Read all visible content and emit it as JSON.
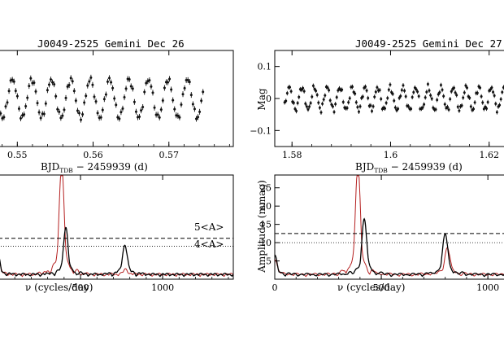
{
  "chart_data": [
    {
      "type": "scatter",
      "title": "J0049-2525 Gemini Dec 26",
      "xlabel_main": "BJD",
      "xlabel_sub": "TDB",
      "xlabel_tail": " − 2459939 (d)",
      "xlim": [
        0.5475,
        0.5785
      ],
      "ylim": [
        0.15,
        -0.15
      ],
      "xticks": [
        0.55,
        0.56,
        0.57
      ],
      "xtick_labels": [
        "0.55",
        "0.56",
        "0.57"
      ],
      "y_reversed": true,
      "period_cycles_per_day": 390,
      "semi_amplitude_mag": 0.06,
      "x_start": 0.5478,
      "x_end": 0.5745,
      "n_points": 122,
      "error_bar_mag": 0.018
    },
    {
      "type": "scatter",
      "title": "J0049-2525 Gemini Dec 27",
      "xlabel_main": "BJD",
      "xlabel_sub": "TDB",
      "xlabel_tail": " − 2459939 (d)",
      "ylabel": "Mag",
      "xlim": [
        1.5765,
        1.6245
      ],
      "ylim": [
        0.15,
        -0.15
      ],
      "xticks": [
        1.58,
        1.6,
        1.62
      ],
      "xtick_labels": [
        "1.58",
        "1.6",
        "1.62"
      ],
      "yticks": [
        -0.1,
        0,
        0.1
      ],
      "ytick_labels": [
        "−0.1",
        "0",
        "0.1"
      ],
      "y_reversed": true,
      "period_cycles_per_day": 390,
      "semi_amplitude_mag": 0.035,
      "x_start": 1.5785,
      "x_end": 1.6245,
      "n_points": 175,
      "error_bar_mag": 0.014
    },
    {
      "type": "line",
      "xlabel": "ν (cycles/day)",
      "xlim": [
        0,
        1430
      ],
      "ylim": [
        0,
        28.5
      ],
      "xticks": [
        500,
        1000
      ],
      "xtick_labels": [
        "500",
        "1000"
      ],
      "threshold_5A": 11.2,
      "threshold_4A": 9.0,
      "threshold_5A_label": "5<A>",
      "threshold_4A_label": "4<A>",
      "series": [
        {
          "color": "#b52020",
          "peaks": [
            [
              385,
              26.5,
              26
            ],
            [
              775,
              1.2,
              25
            ],
            [
              0,
              4,
              20
            ]
          ]
        },
        {
          "color": "#000000",
          "peaks": [
            [
              410,
              11.5,
              24
            ],
            [
              770,
              7.2,
              26
            ],
            [
              0,
              4.2,
              20
            ]
          ]
        }
      ]
    },
    {
      "type": "line",
      "xlabel": "ν (cycles/day)",
      "ylabel": "Amplitude (mmag)",
      "xlim": [
        0,
        1110
      ],
      "ylim": [
        0,
        28.5
      ],
      "xticks": [
        0,
        500,
        1000
      ],
      "xtick_labels": [
        "0",
        "500",
        "1000"
      ],
      "yticks": [
        5,
        10,
        15,
        20,
        25
      ],
      "ytick_labels": [
        "5",
        "10",
        "15",
        "20",
        "25"
      ],
      "threshold_5A": 12.5,
      "threshold_4A": 10.0,
      "series": [
        {
          "color": "#b52020",
          "peaks": [
            [
              390,
              26.5,
              20
            ],
            [
              810,
              6.5,
              22
            ],
            [
              0,
              4,
              18
            ]
          ]
        },
        {
          "color": "#000000",
          "peaks": [
            [
              420,
              13.5,
              20
            ],
            [
              800,
              9.7,
              22
            ],
            [
              0,
              4.5,
              18
            ]
          ]
        }
      ]
    }
  ]
}
